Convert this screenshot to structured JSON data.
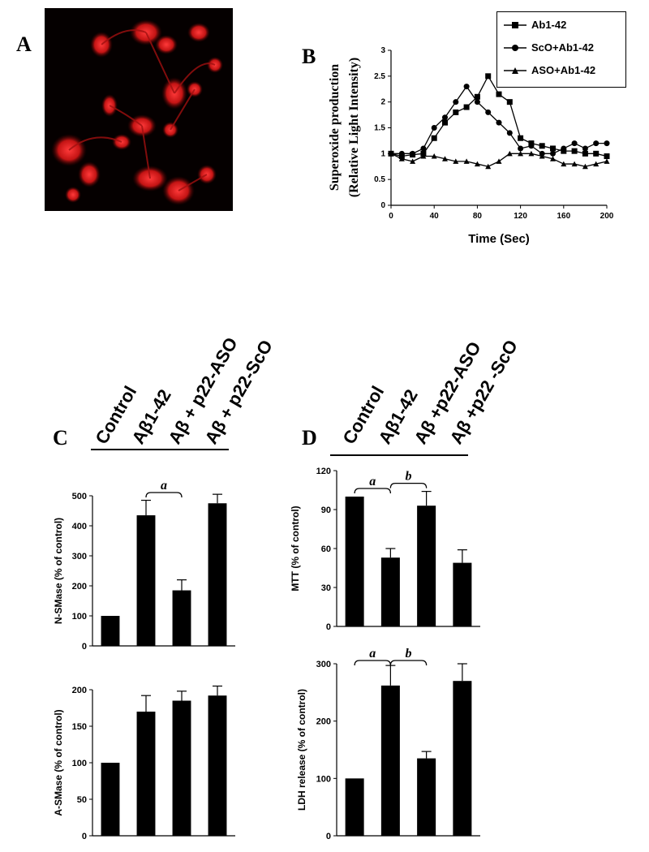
{
  "panels": {
    "a": "A",
    "b": "B",
    "c": "C",
    "d": "D"
  },
  "chart_data": [
    {
      "panel": "B",
      "type": "line",
      "ylabel_line1": "Superoxide production",
      "ylabel_line2": "(Relative Light Intensity)",
      "xlabel": "Time (Sec)",
      "xlim": [
        0,
        200
      ],
      "ylim": [
        0,
        3
      ],
      "xticks": [
        "0",
        "40",
        "80",
        "120",
        "160",
        "200"
      ],
      "yticks": [
        "0",
        "0.5",
        "1",
        "1.5",
        "2",
        "2.5",
        "3"
      ],
      "legend": [
        "Ab1-42",
        "ScO+Ab1-42",
        "ASO+Ab1-42"
      ],
      "series": [
        {
          "name": "Ab1-42",
          "marker": "square",
          "x": [
            0,
            10,
            20,
            30,
            40,
            50,
            60,
            70,
            80,
            90,
            100,
            110,
            120,
            130,
            140,
            150,
            160,
            170,
            180,
            190,
            200
          ],
          "y": [
            1.0,
            0.95,
            0.98,
            1.0,
            1.3,
            1.6,
            1.8,
            1.9,
            2.1,
            2.5,
            2.15,
            2.0,
            1.3,
            1.2,
            1.15,
            1.1,
            1.05,
            1.05,
            1.0,
            1.0,
            0.95
          ]
        },
        {
          "name": "ScO+Ab1-42",
          "marker": "circle",
          "x": [
            0,
            10,
            20,
            30,
            40,
            50,
            60,
            70,
            80,
            90,
            100,
            110,
            120,
            130,
            140,
            150,
            160,
            170,
            180,
            190,
            200
          ],
          "y": [
            1.0,
            1.0,
            1.0,
            1.1,
            1.5,
            1.7,
            2.0,
            2.3,
            2.0,
            1.8,
            1.6,
            1.4,
            1.1,
            1.15,
            1.0,
            1.0,
            1.1,
            1.2,
            1.1,
            1.2,
            1.2
          ]
        },
        {
          "name": "ASO+Ab1-42",
          "marker": "triangle",
          "x": [
            0,
            10,
            20,
            30,
            40,
            50,
            60,
            70,
            80,
            90,
            100,
            110,
            120,
            130,
            140,
            150,
            160,
            170,
            180,
            190,
            200
          ],
          "y": [
            1.0,
            0.9,
            0.85,
            0.95,
            0.95,
            0.9,
            0.85,
            0.85,
            0.8,
            0.75,
            0.85,
            1.0,
            1.0,
            1.0,
            0.95,
            0.9,
            0.8,
            0.8,
            0.75,
            0.8,
            0.85
          ]
        }
      ]
    },
    {
      "panel": "C-top",
      "type": "bar",
      "ylabel": "N-SMase (% of control)",
      "ylim": [
        0,
        500
      ],
      "yticks": [
        "0",
        "100",
        "200",
        "300",
        "400",
        "500"
      ],
      "categories": [
        "Control",
        "Aβ1-42",
        "Aβ + p22-ASO",
        "Aβ + p22-ScO"
      ],
      "values": [
        100,
        435,
        185,
        475
      ],
      "errors": [
        0,
        50,
        35,
        30
      ],
      "brackets": [
        {
          "from": 1,
          "to": 2,
          "label": "a"
        }
      ]
    },
    {
      "panel": "C-bottom",
      "type": "bar",
      "ylabel": "A-SMase (% of control)",
      "ylim": [
        0,
        200
      ],
      "yticks": [
        "0",
        "50",
        "100",
        "150",
        "200"
      ],
      "categories": [
        "Control",
        "Aβ1-42",
        "Aβ + p22-ASO",
        "Aβ + p22-ScO"
      ],
      "values": [
        100,
        170,
        185,
        192
      ],
      "errors": [
        0,
        22,
        13,
        13
      ],
      "brackets": []
    },
    {
      "panel": "D-top",
      "type": "bar",
      "ylabel": "MTT (% of control)",
      "ylim": [
        0,
        120
      ],
      "yticks": [
        "0",
        "30",
        "60",
        "90",
        "120"
      ],
      "categories": [
        "Control",
        "Aβ1-42",
        "Aβ +p22-ASO",
        "Aβ +p22 -ScO"
      ],
      "values": [
        100,
        53,
        93,
        49
      ],
      "errors": [
        0,
        7,
        11,
        10
      ],
      "brackets": [
        {
          "from": 0,
          "to": 1,
          "label": "a"
        },
        {
          "from": 1,
          "to": 2,
          "label": "b"
        }
      ]
    },
    {
      "panel": "D-bottom",
      "type": "bar",
      "ylabel": "LDH release (% of control)",
      "ylim": [
        0,
        300
      ],
      "yticks": [
        "0",
        "100",
        "200",
        "300"
      ],
      "categories": [
        "Control",
        "Aβ1-42",
        "Aβ +p22-ASO",
        "Aβ +p22 -ScO"
      ],
      "values": [
        100,
        262,
        135,
        270
      ],
      "errors": [
        0,
        35,
        12,
        30
      ],
      "brackets": [
        {
          "from": 0,
          "to": 1,
          "label": "a"
        },
        {
          "from": 1,
          "to": 2,
          "label": "b"
        }
      ]
    }
  ],
  "headers": {
    "c": [
      "Control",
      "Aβ1-42",
      "Aβ + p22-ASO",
      "Aβ + p22-ScO"
    ],
    "d": [
      "Control",
      "Aβ1-42",
      "Aβ +p22-ASO",
      "Aβ +p22 -ScO"
    ]
  }
}
